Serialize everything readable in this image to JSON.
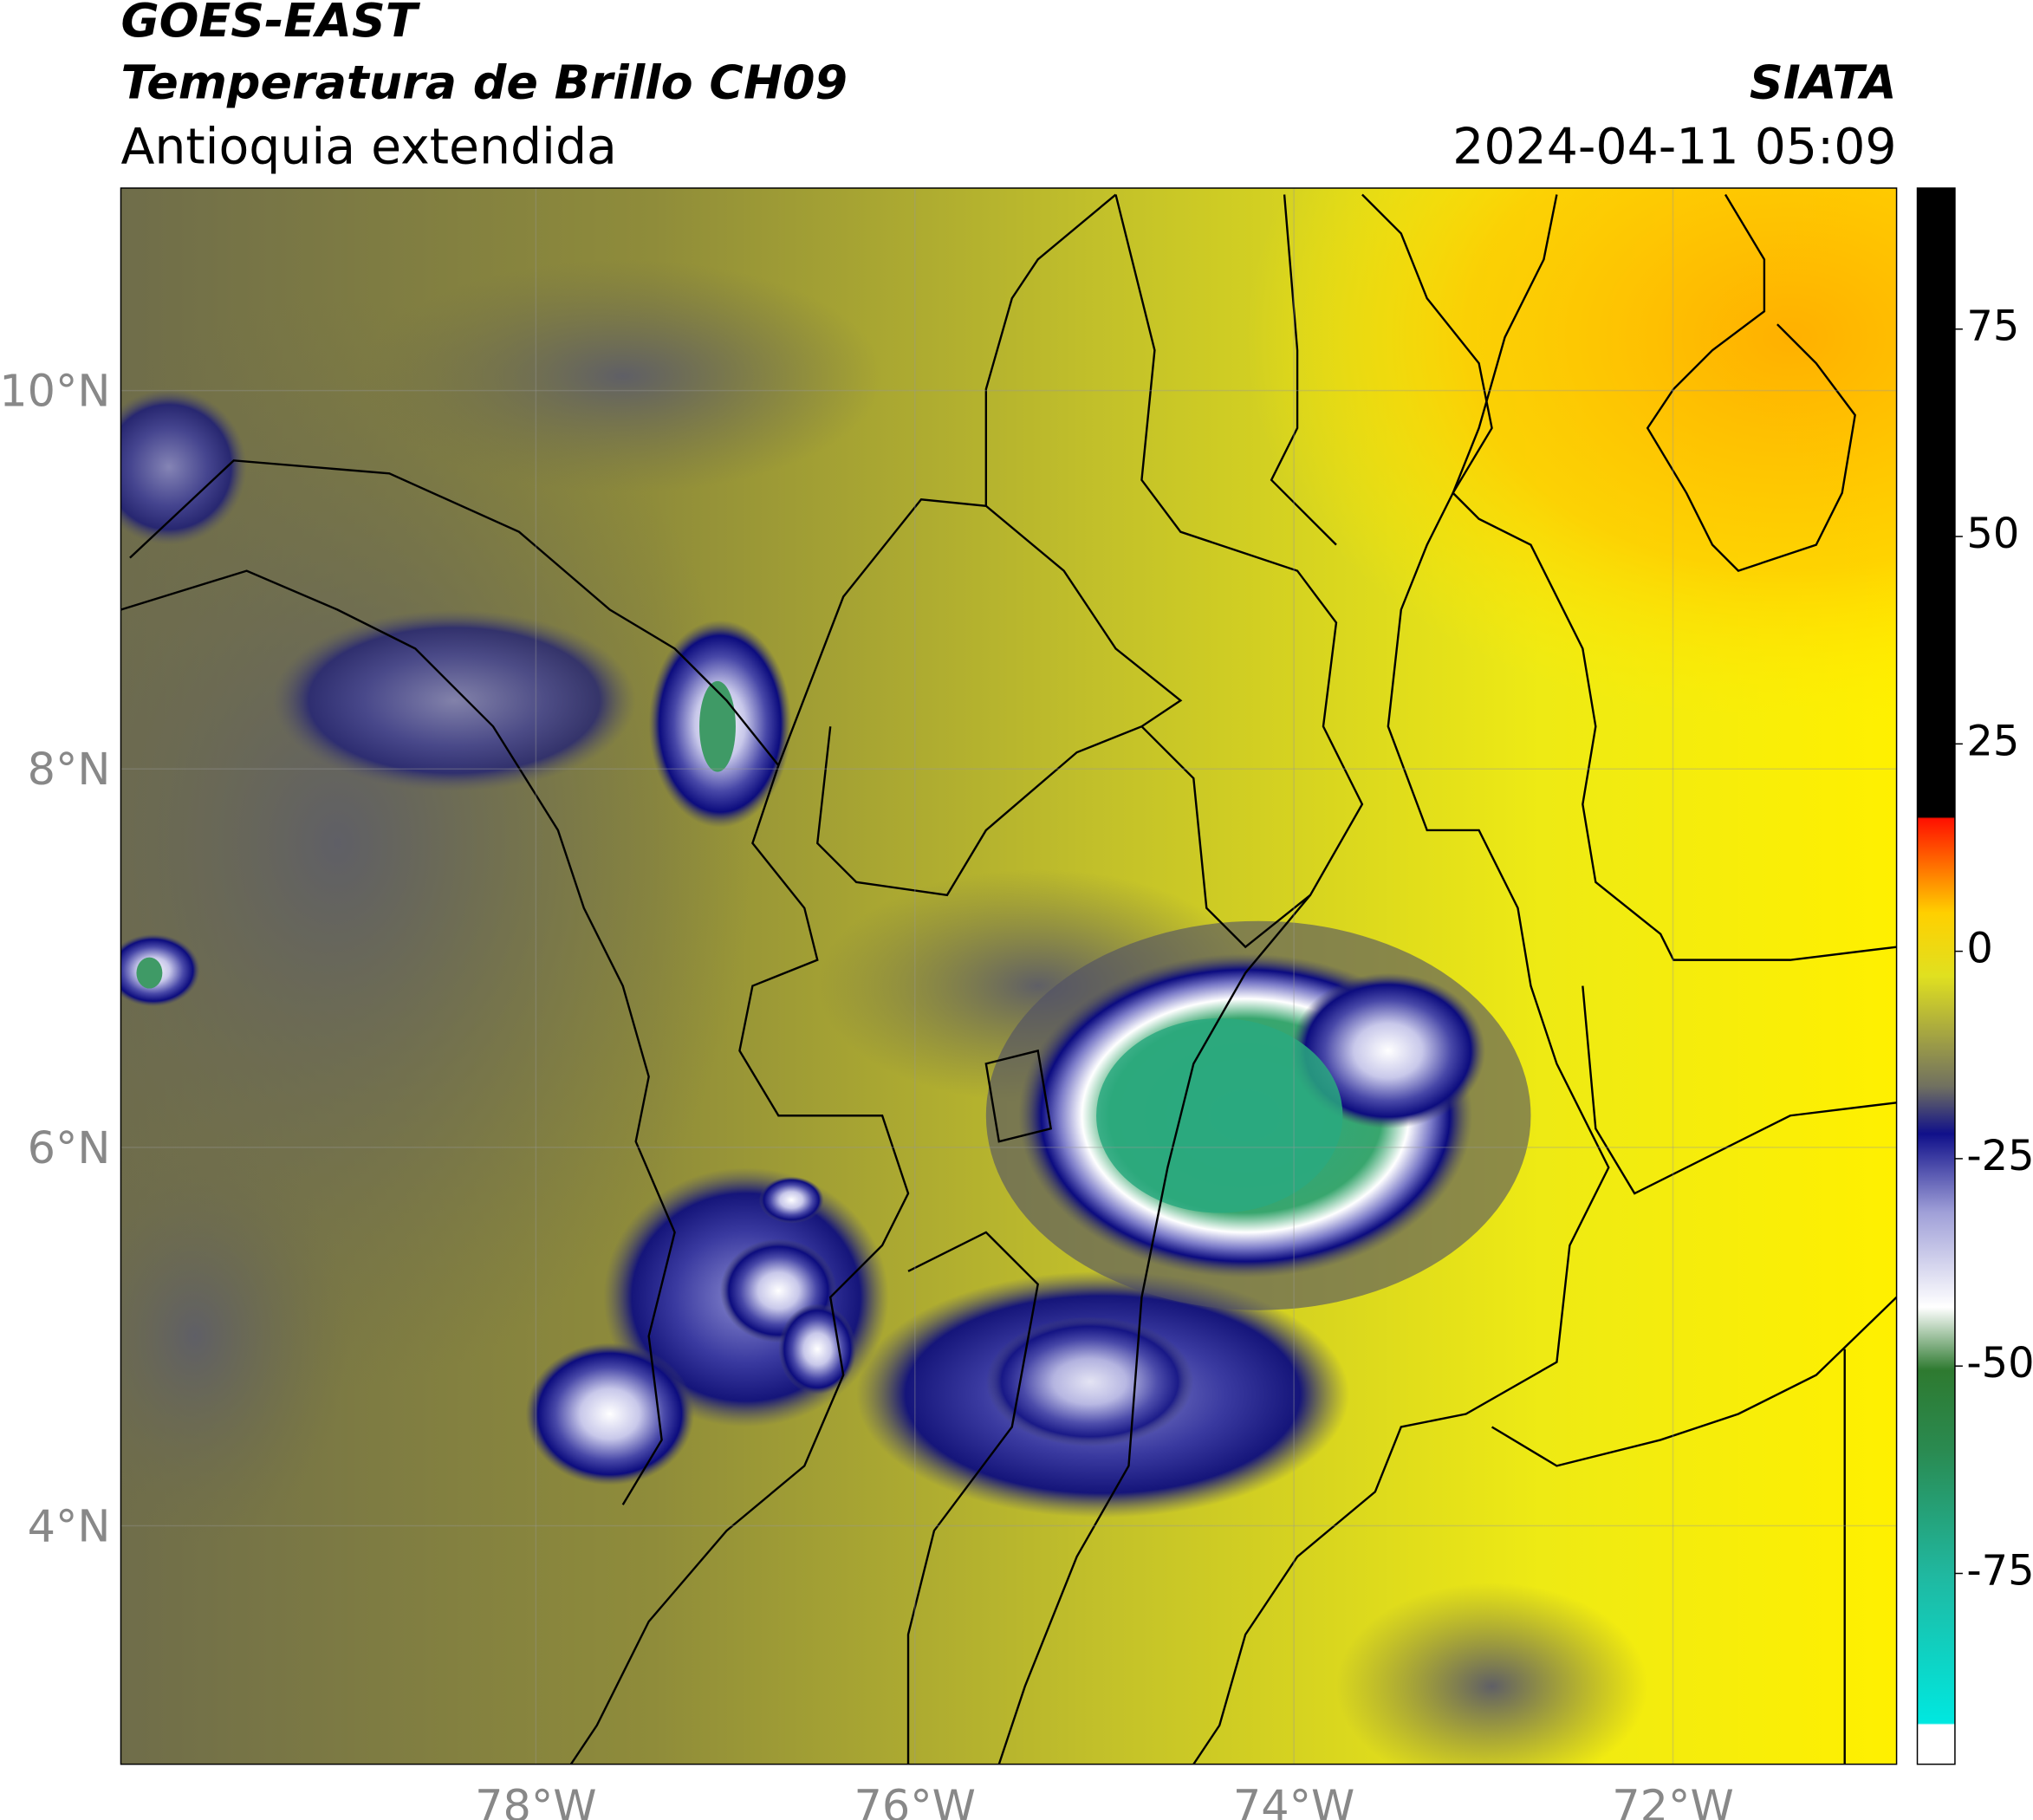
{
  "header": {
    "title": "GOES-EAST",
    "subtitle": "Temperatura de Brillo CH09",
    "region": "Antioquia extendida",
    "source": "SIATA",
    "datetime": "2024-04-11 05:09"
  },
  "map": {
    "xlim": [
      -80.19,
      -70.82
    ],
    "ylim": [
      2.74,
      11.07
    ],
    "xticks": [
      {
        "value": -78,
        "label": "78°W"
      },
      {
        "value": -76,
        "label": "76°W"
      },
      {
        "value": -74,
        "label": "74°W"
      },
      {
        "value": -72,
        "label": "72°W"
      }
    ],
    "yticks": [
      {
        "value": 4,
        "label": "4°N"
      },
      {
        "value": 6,
        "label": "6°N"
      },
      {
        "value": 8,
        "label": "8°N"
      },
      {
        "value": 10,
        "label": "10°N"
      }
    ]
  },
  "colorbar": {
    "lim": [
      -98,
      92
    ],
    "ticks": [
      -75,
      -50,
      -25,
      0,
      25,
      50,
      75
    ]
  }
}
